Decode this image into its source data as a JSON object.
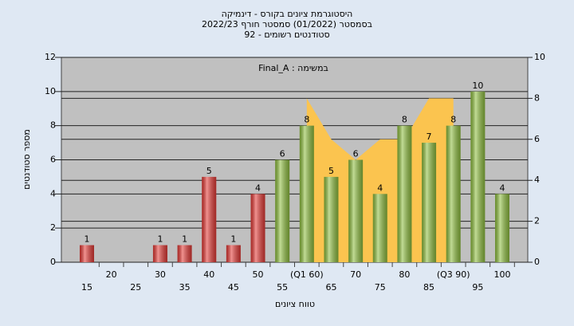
{
  "chart_data": {
    "type": "bar",
    "title_lines": [
      "היסטוגרמת ציונים בקורס - דינמיקה",
      "בסמסטר  (01/2022)  סמסטר חורף 2022/23",
      "סטודנטים רשומים - 92"
    ],
    "annotation": "Final_A : במשימה",
    "y_label": "מספר סטודנטים",
    "x_label": "טווח ציונים",
    "categories": [
      "15",
      "20",
      "25",
      "30",
      "35",
      "40",
      "45",
      "50",
      "55",
      "(Q1 60)",
      "65",
      "70",
      "75",
      "80",
      "85",
      "(Q3 90)",
      "95",
      "100"
    ],
    "values": [
      1,
      0,
      0,
      1,
      1,
      5,
      1,
      4,
      6,
      8,
      5,
      6,
      4,
      8,
      7,
      8,
      10,
      4
    ],
    "bar_colors": [
      "#e53935",
      "#e53935",
      "#e53935",
      "#e53935",
      "#e53935",
      "#e53935",
      "#e53935",
      "#e53935",
      "#8fbf3f",
      "#8fbf3f",
      "#8fbf3f",
      "#8fbf3f",
      "#8fbf3f",
      "#8fbf3f",
      "#8fbf3f",
      "#8fbf3f",
      "#8fbf3f",
      "#8fbf3f"
    ],
    "area": {
      "color": "#fbc44f",
      "axis": "y2",
      "values": [
        null,
        null,
        null,
        null,
        null,
        null,
        null,
        null,
        null,
        8,
        6,
        5,
        6,
        6,
        8,
        8,
        null,
        null
      ]
    },
    "ylim": [
      0,
      12
    ],
    "yticks": [
      0,
      2,
      4,
      6,
      8,
      10,
      12
    ],
    "y2lim": [
      0,
      10
    ],
    "y2ticks": [
      0,
      2,
      4,
      6,
      8,
      10
    ],
    "grid": true,
    "y2grid": true
  }
}
